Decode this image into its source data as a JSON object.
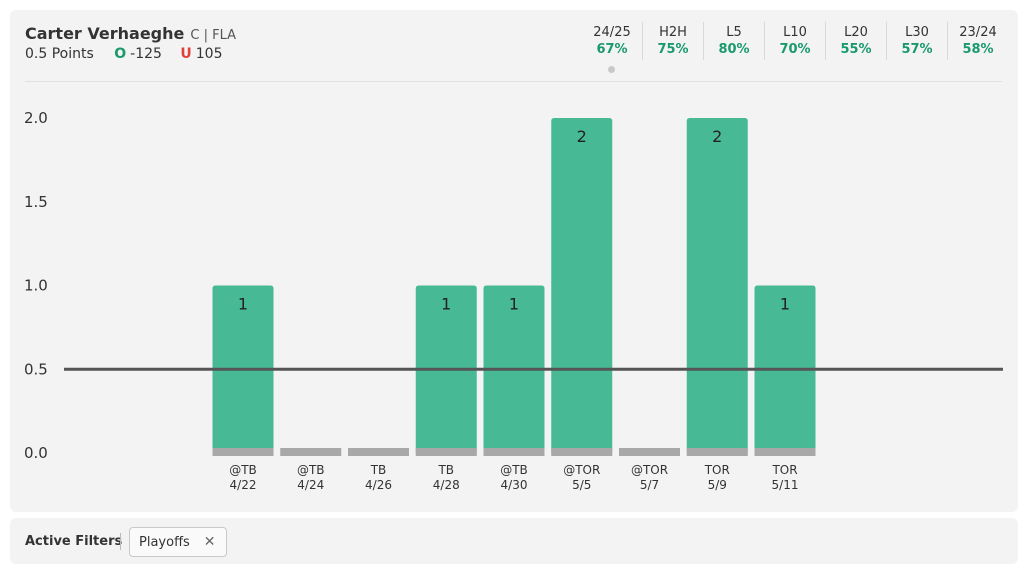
{
  "player": {
    "name": "Carter Verhaeghe",
    "meta": "C | FLA"
  },
  "prop": {
    "line": "0.5 Points",
    "over_label": "O",
    "over_odds": "-125",
    "under_label": "U",
    "under_odds": "105"
  },
  "stats": [
    {
      "label": "24/25",
      "value": "67%"
    },
    {
      "label": "H2H",
      "value": "75%"
    },
    {
      "label": "L5",
      "value": "80%"
    },
    {
      "label": "L10",
      "value": "70%"
    },
    {
      "label": "L20",
      "value": "55%"
    },
    {
      "label": "L30",
      "value": "57%"
    },
    {
      "label": "23/24",
      "value": "58%"
    }
  ],
  "filters": {
    "label": "Active Filters",
    "chip": "Playoffs",
    "chip_remove": "✕"
  },
  "colors": {
    "bar": "#47b994",
    "bar_base": "#a8a8a8",
    "line": "#555555",
    "positive": "#1a9a6c",
    "negative": "#e0403a"
  },
  "chart_data": {
    "type": "bar",
    "categories": [
      "@TB",
      "@TB",
      "TB",
      "TB",
      "@TB",
      "@TOR",
      "@TOR",
      "TOR",
      "TOR"
    ],
    "dates": [
      "4/22",
      "4/24",
      "4/26",
      "4/28",
      "4/30",
      "5/5",
      "5/7",
      "5/9",
      "5/11"
    ],
    "values": [
      1,
      0,
      0,
      1,
      1,
      2,
      0,
      2,
      1
    ],
    "line_value": 0.5,
    "ylim": [
      0,
      2.0
    ],
    "yticks": [
      "2.0",
      "1.5",
      "1.0",
      "0.5",
      "0.0"
    ],
    "grid": false
  }
}
